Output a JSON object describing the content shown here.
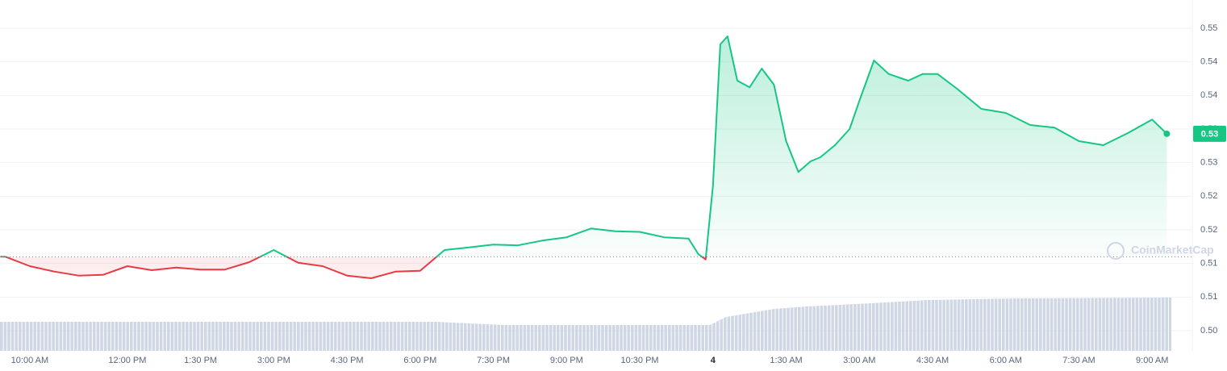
{
  "chart_data": {
    "type": "line",
    "x": [
      -0.6,
      -0.5,
      0,
      0.5,
      1,
      1.5,
      2,
      2.5,
      3,
      3.5,
      4,
      4.5,
      5,
      5.5,
      6,
      6.5,
      7,
      7.5,
      8,
      8.5,
      9,
      9.5,
      10,
      10.5,
      11,
      11.5,
      12,
      12.5,
      13,
      13.5,
      13.7,
      13.85,
      14,
      14.15,
      14.3,
      14.5,
      14.75,
      15,
      15.25,
      15.5,
      15.75,
      16,
      16.2,
      16.5,
      16.8,
      17,
      17.3,
      17.6,
      18,
      18.3,
      18.6,
      19,
      19.5,
      20,
      20.5,
      21,
      21.5,
      22,
      22.5,
      23,
      23.3
    ],
    "values": [
      0.516,
      0.516,
      0.5146,
      0.5138,
      0.5132,
      0.5133,
      0.5146,
      0.514,
      0.5144,
      0.5141,
      0.5141,
      0.5152,
      0.517,
      0.5151,
      0.5146,
      0.5132,
      0.5128,
      0.5138,
      0.5139,
      0.517,
      0.5174,
      0.5178,
      0.5177,
      0.5184,
      0.5189,
      0.5202,
      0.5198,
      0.5197,
      0.5189,
      0.5187,
      0.5164,
      0.5156,
      0.5266,
      0.5476,
      0.5488,
      0.5422,
      0.5412,
      0.544,
      0.5416,
      0.5332,
      0.5286,
      0.5302,
      0.5308,
      0.5326,
      0.535,
      0.5392,
      0.5452,
      0.5432,
      0.5422,
      0.5432,
      0.5432,
      0.541,
      0.538,
      0.5374,
      0.5356,
      0.5352,
      0.5332,
      0.5326,
      0.5344,
      0.5364,
      0.5343
    ],
    "up_color": "#16c784",
    "down_color": "#ea3943",
    "reference": 0.516,
    "current_price": {
      "value": 0.5343,
      "label": "0.53"
    },
    "xlim": [
      -0.61,
      23.36
    ],
    "xticks": [
      {
        "value": 0,
        "label": "10:00 AM"
      },
      {
        "value": 2,
        "label": "12:00 PM"
      },
      {
        "value": 3.5,
        "label": "1:30 PM"
      },
      {
        "value": 5,
        "label": "3:00 PM"
      },
      {
        "value": 6.5,
        "label": "4:30 PM"
      },
      {
        "value": 8,
        "label": "6:00 PM"
      },
      {
        "value": 9.5,
        "label": "7:30 PM"
      },
      {
        "value": 11,
        "label": "9:00 PM"
      },
      {
        "value": 12.5,
        "label": "10:30 PM"
      },
      {
        "value": 14,
        "label": "4"
      },
      {
        "value": 15.5,
        "label": "1:30 AM"
      },
      {
        "value": 17,
        "label": "3:00 AM"
      },
      {
        "value": 18.5,
        "label": "4:30 AM"
      },
      {
        "value": 20,
        "label": "6:00 AM"
      },
      {
        "value": 21.5,
        "label": "7:30 AM"
      },
      {
        "value": 23,
        "label": "9:00 AM"
      }
    ],
    "ylim": [
      0.502,
      0.5542
    ],
    "yticks": [
      {
        "value": 0.55,
        "label": "0.55"
      },
      {
        "value": 0.545,
        "label": "0.54"
      },
      {
        "value": 0.54,
        "label": "0.54"
      },
      {
        "value": 0.535,
        "label": "0.53"
      },
      {
        "value": 0.53,
        "label": "0.53"
      },
      {
        "value": 0.525,
        "label": "0.52"
      },
      {
        "value": 0.52,
        "label": "0.52"
      },
      {
        "value": 0.515,
        "label": "0.51"
      },
      {
        "value": 0.51,
        "label": "0.51"
      },
      {
        "value": 0.505,
        "label": "0.50"
      }
    ],
    "grid": true,
    "watermark": "CoinMarketCap"
  }
}
